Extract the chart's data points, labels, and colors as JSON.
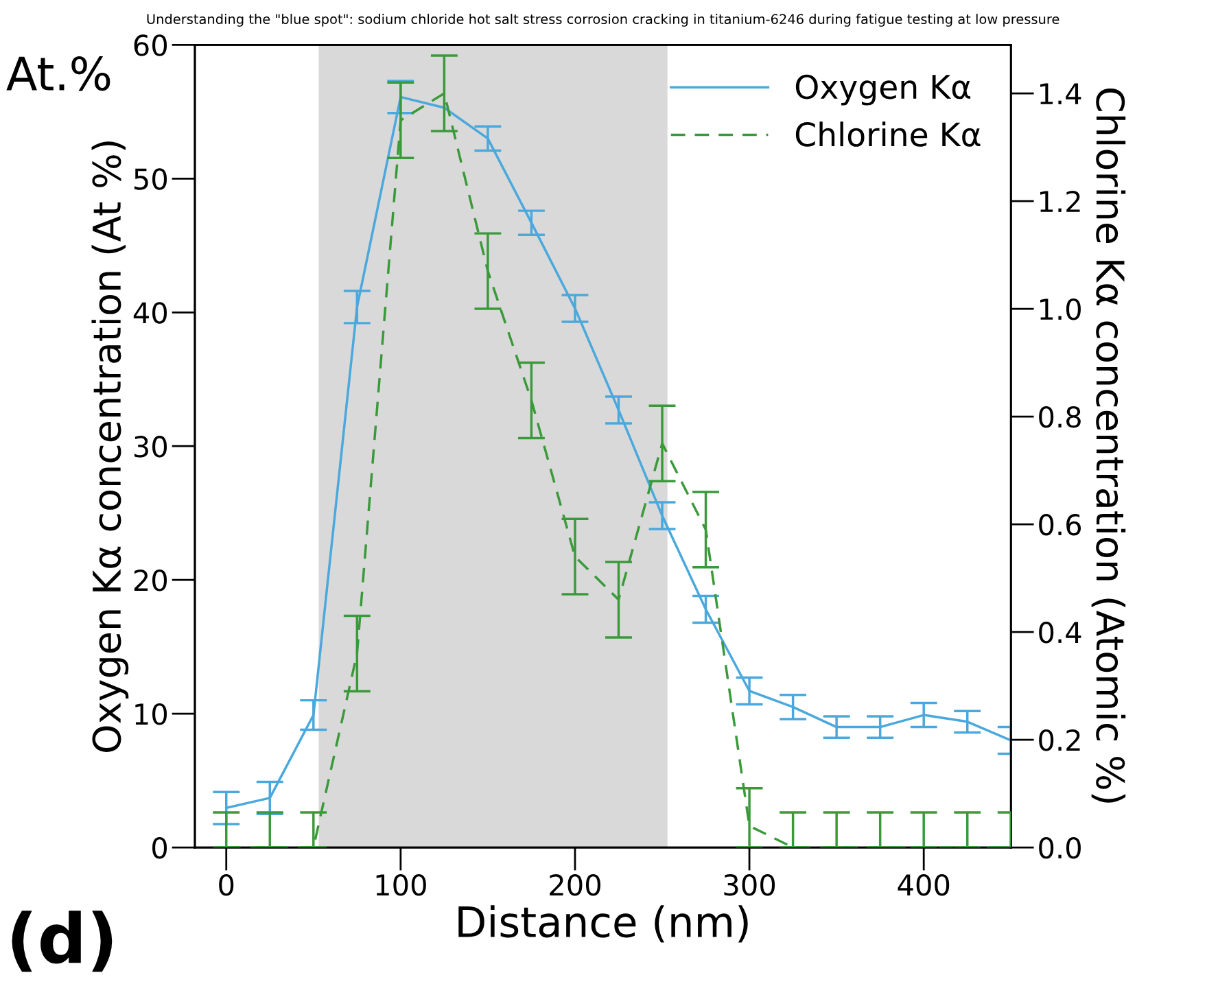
{
  "chart_data": {
    "type": "line",
    "title": "Understanding the \"blue spot\": sodium chloride hot salt stress corrosion cracking in titanium-6246 during fatigue testing at low pressure",
    "xlabel": "Distance (nm)",
    "ylabel": "Oxygen Kα concentration (At %)",
    "y2label": "Chlorine Kα concentration (Atomic %)",
    "annotations": [
      "At.%",
      "(d)"
    ],
    "x": [
      0,
      25,
      50,
      75,
      100,
      125,
      150,
      175,
      200,
      225,
      250,
      275,
      300,
      325,
      350,
      375,
      400,
      425,
      450
    ],
    "series": [
      {
        "name": "Oxygen Kα",
        "color": "#4aa8dc",
        "line_style": "solid",
        "values": [
          2.95,
          3.7,
          9.9,
          40.4,
          56.1,
          55.3,
          53.0,
          46.7,
          40.3,
          32.7,
          24.8,
          17.8,
          11.7,
          10.5,
          9.0,
          9.0,
          9.9,
          9.4,
          8.0
        ],
        "errors": [
          1.2,
          1.2,
          1.1,
          1.2,
          1.2,
          null,
          0.9,
          0.9,
          1.0,
          1.0,
          1.0,
          1.0,
          1.0,
          0.9,
          0.8,
          0.8,
          0.9,
          0.8,
          1.0
        ]
      },
      {
        "name": "Chlorine Kα",
        "color": "#3a9a3a",
        "line_style": "dashed",
        "axis": "y2",
        "values": [
          0.0,
          0.0,
          0.0,
          0.36,
          1.35,
          1.4,
          1.07,
          0.83,
          0.54,
          0.46,
          0.75,
          0.59,
          0.04,
          0.0,
          0.0,
          0.0,
          0.0,
          0.0,
          0.0
        ],
        "errors": [
          [
            0,
            0.065
          ],
          [
            0,
            0.065
          ],
          [
            0,
            0.065
          ],
          0.07,
          0.07,
          0.07,
          0.07,
          0.07,
          0.07,
          0.07,
          0.07,
          0.07,
          [
            0,
            0.11
          ],
          [
            0,
            0.065
          ],
          [
            0,
            0.065
          ],
          [
            0,
            0.065
          ],
          [
            0,
            0.065
          ],
          [
            0,
            0.065
          ],
          [
            0,
            0.065
          ]
        ]
      }
    ],
    "bands": [
      {
        "axis": "x",
        "from": 53,
        "to": 253,
        "color": "#d9d9d9"
      }
    ],
    "xlim": [
      -18,
      450
    ],
    "xticks": [
      0,
      100,
      200,
      300,
      400
    ],
    "ylim": [
      0,
      60
    ],
    "yticks": [
      0,
      10,
      20,
      30,
      40,
      50,
      60
    ],
    "y2lim": [
      0,
      1.49
    ],
    "y2ticks": [
      {
        "value": 0,
        "label": "0.0"
      },
      0.2,
      0.4,
      0.6,
      0.8,
      {
        "value": 1.0,
        "label": "1.0"
      },
      1.2,
      1.4
    ],
    "grid": false,
    "legend": "top right",
    "marker": "none"
  }
}
